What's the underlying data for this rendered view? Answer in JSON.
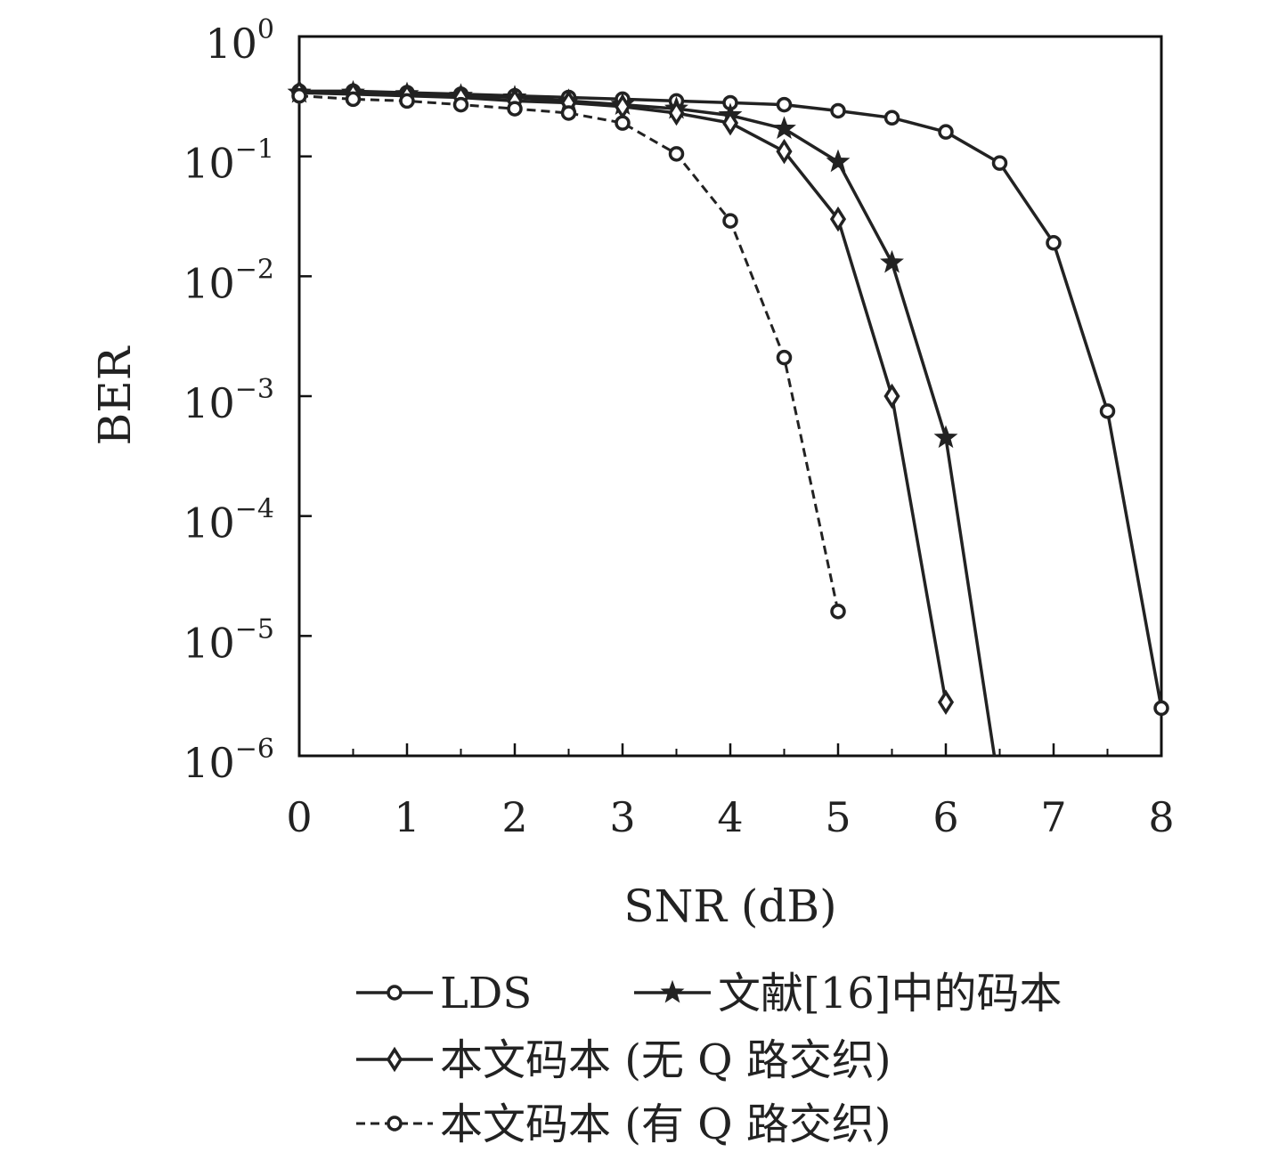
{
  "chart_data": {
    "type": "line",
    "title": "",
    "xlabel": "SNR (dB)",
    "ylabel": "BER",
    "xlim": [
      0,
      8
    ],
    "ylim": [
      1e-06,
      1
    ],
    "yscale": "log",
    "grid": false,
    "legend_position": "bottom",
    "x_ticks": [
      "0",
      "1",
      "2",
      "3",
      "4",
      "5",
      "6",
      "7",
      "8"
    ],
    "y_ticks": [
      {
        "base": "10",
        "exp": "0"
      },
      {
        "base": "10",
        "exp": "−1"
      },
      {
        "base": "10",
        "exp": "−2"
      },
      {
        "base": "10",
        "exp": "−3"
      },
      {
        "base": "10",
        "exp": "−4"
      },
      {
        "base": "10",
        "exp": "−5"
      },
      {
        "base": "10",
        "exp": "−6"
      }
    ],
    "series": [
      {
        "name": "LDS",
        "marker": "circle",
        "dash": false,
        "x": [
          0,
          0.5,
          1,
          1.5,
          2,
          2.5,
          3,
          3.5,
          4,
          4.5,
          5,
          5.5,
          6,
          6.5,
          7,
          7.5,
          8
        ],
        "y": [
          0.35,
          0.35,
          0.34,
          0.33,
          0.32,
          0.31,
          0.3,
          0.29,
          0.28,
          0.27,
          0.24,
          0.21,
          0.16,
          0.088,
          0.019,
          0.00075,
          2.5e-06
        ]
      },
      {
        "name": "文献[16]中的码本",
        "marker": "star",
        "dash": false,
        "x": [
          0,
          0.5,
          1,
          1.5,
          2,
          2.5,
          3,
          3.5,
          4,
          4.5,
          5,
          5.5,
          6,
          6.45
        ],
        "y": [
          0.34,
          0.34,
          0.33,
          0.32,
          0.31,
          0.29,
          0.27,
          0.25,
          0.22,
          0.17,
          0.09,
          0.013,
          0.00045,
          1e-06
        ]
      },
      {
        "name": "本文码本 (无 Q 路交织)",
        "marker": "diamond",
        "dash": false,
        "x": [
          0,
          0.5,
          1,
          1.5,
          2,
          2.5,
          3,
          3.5,
          4,
          4.5,
          5,
          5.5,
          6
        ],
        "y": [
          0.34,
          0.33,
          0.32,
          0.31,
          0.29,
          0.28,
          0.26,
          0.23,
          0.19,
          0.11,
          0.03,
          0.001,
          2.8e-06
        ]
      },
      {
        "name": "本文码本 (有 Q 路交织)",
        "marker": "circle",
        "dash": true,
        "x": [
          0,
          0.5,
          1,
          1.5,
          2,
          2.5,
          3,
          3.5,
          4,
          4.5,
          5
        ],
        "y": [
          0.32,
          0.3,
          0.29,
          0.27,
          0.25,
          0.23,
          0.19,
          0.105,
          0.029,
          0.0021,
          1.6e-05
        ]
      }
    ],
    "legend": {
      "entries": [
        {
          "label": "LDS",
          "series": 0
        },
        {
          "label": "文献[16]中的码本",
          "series": 1
        },
        {
          "label": "本文码本 (无 Q 路交织)",
          "series": 2
        },
        {
          "label": "本文码本 (有 Q 路交织)",
          "series": 3
        }
      ]
    },
    "colors": {
      "line": "#222222",
      "axis": "#111111",
      "marker_fill": "#ffffff"
    }
  }
}
